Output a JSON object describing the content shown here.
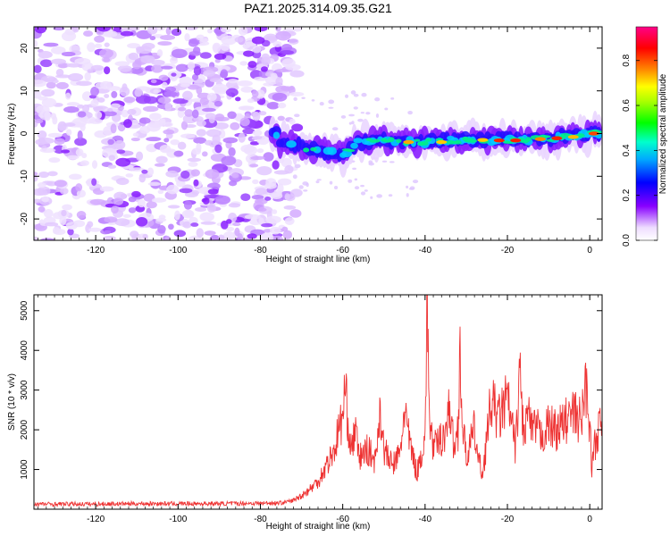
{
  "chart_data": [
    {
      "type": "heatmap",
      "title": "PAZ1.2025.314.09.35.G21",
      "xlabel": "Height of straight line (km)",
      "ylabel": "Frequency (Hz)",
      "xlim": [
        -135,
        3
      ],
      "ylim": [
        -25,
        25
      ],
      "xticks": [
        -120,
        -100,
        -80,
        -60,
        -40,
        -20,
        0
      ],
      "yticks": [
        -20,
        -10,
        0,
        10,
        20
      ],
      "colorbar": {
        "label": "Normalized spectral amplitude",
        "range": [
          0,
          0.95
        ],
        "ticks": [
          0.0,
          0.2,
          0.4,
          0.6,
          0.8
        ]
      },
      "ridge": [
        {
          "x": -76,
          "y": -2
        },
        {
          "x": -70,
          "y": -3
        },
        {
          "x": -66,
          "y": -4
        },
        {
          "x": -60,
          "y": -5
        },
        {
          "x": -56,
          "y": -2
        },
        {
          "x": -50,
          "y": -1.5
        },
        {
          "x": -44,
          "y": -2
        },
        {
          "x": -38,
          "y": -1.8
        },
        {
          "x": -30,
          "y": -1.5
        },
        {
          "x": -24,
          "y": -1.5
        },
        {
          "x": -16,
          "y": -1.5
        },
        {
          "x": -8,
          "y": -1
        },
        {
          "x": 0,
          "y": 0
        },
        {
          "x": 3,
          "y": 0
        }
      ]
    },
    {
      "type": "line",
      "xlabel": "Height of straight line (km)",
      "ylabel": "SNR (10 * v/v)",
      "xlim": [
        -135,
        3
      ],
      "ylim": [
        0,
        5400
      ],
      "xticks": [
        -120,
        -100,
        -80,
        -60,
        -40,
        -20,
        0
      ],
      "yticks": [
        1000,
        2000,
        3000,
        4000,
        5000
      ],
      "series": [
        {
          "name": "SNR",
          "color": "#ee3333",
          "x": [
            -135,
            -128,
            -120,
            -110,
            -100,
            -90,
            -80,
            -75,
            -72,
            -70,
            -68,
            -66,
            -64,
            -62,
            -61,
            -60,
            -59.5,
            -58,
            -57,
            -56,
            -54,
            -52,
            -51,
            -50,
            -48,
            -46,
            -45,
            -44,
            -42,
            -40,
            -39.5,
            -39,
            -38,
            -36,
            -35,
            -34,
            -33,
            -32,
            -31.5,
            -31,
            -30,
            -28,
            -27,
            -26,
            -24,
            -22,
            -20,
            -18,
            -17,
            -16,
            -15,
            -14,
            -13,
            -12,
            -10,
            -8,
            -6,
            -4,
            -2,
            -1,
            0,
            0.5,
            1,
            2,
            3
          ],
          "y": [
            130,
            130,
            130,
            140,
            140,
            140,
            150,
            160,
            220,
            350,
            500,
            700,
            1100,
            1500,
            2000,
            2300,
            3050,
            1500,
            2000,
            1300,
            1500,
            1200,
            2600,
            1500,
            1100,
            1400,
            2600,
            1800,
            900,
            1800,
            5400,
            2500,
            1500,
            1800,
            2000,
            2600,
            1500,
            2000,
            4150,
            2200,
            1300,
            2000,
            1200,
            900,
            2700,
            2300,
            2800,
            1500,
            3500,
            1800,
            2500,
            1900,
            2100,
            1800,
            2100,
            2000,
            2200,
            2400,
            2200,
            3200,
            2200,
            1000,
            1500,
            2000,
            2000
          ]
        }
      ]
    }
  ]
}
